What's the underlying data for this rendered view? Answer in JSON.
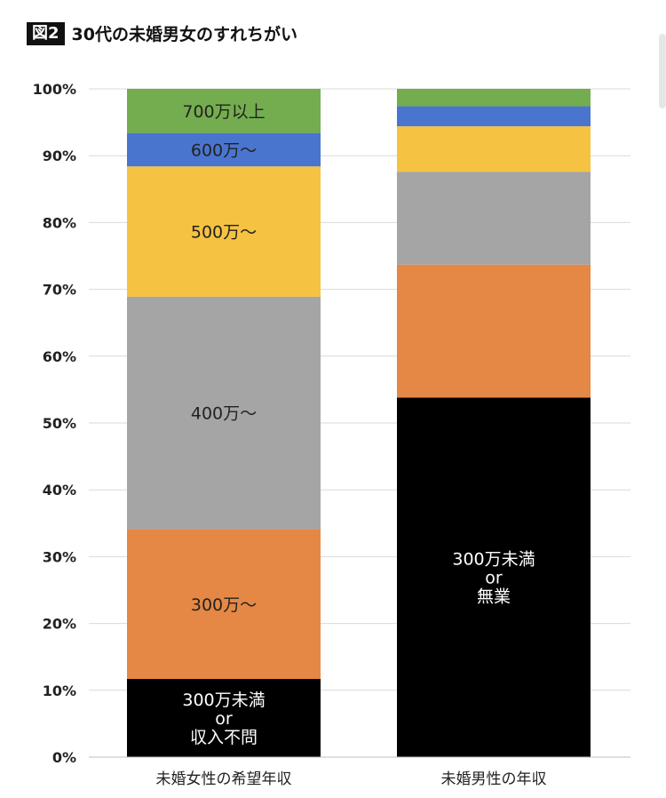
{
  "header": {
    "figure_label": "図2",
    "title": "30代の未婚男女のすれちがい"
  },
  "chart_data": {
    "type": "bar",
    "stacked": true,
    "title": "30代の未婚男女のすれちがい",
    "categories": [
      "未婚女性の希望年収",
      "未婚男性の年収"
    ],
    "ylim": [
      0,
      100
    ],
    "yticks": [
      "0%",
      "10%",
      "20%",
      "30%",
      "40%",
      "50%",
      "60%",
      "70%",
      "80%",
      "90%",
      "100%"
    ],
    "grid": true,
    "series": [
      {
        "color": "#000000",
        "text_color": "#ffffff",
        "values": [
          11.7,
          53.8
        ],
        "labels": [
          [
            "300万未満",
            "or",
            "収入不問"
          ],
          [
            "300万未満",
            "or",
            "無業"
          ]
        ]
      },
      {
        "color": "#e58845",
        "text_color": "#222222",
        "values": [
          22.4,
          19.9
        ],
        "labels": [
          [
            "300万～"
          ],
          []
        ]
      },
      {
        "color": "#a5a5a5",
        "text_color": "#222222",
        "values": [
          34.8,
          13.9
        ],
        "labels": [
          [
            "400万～"
          ],
          []
        ]
      },
      {
        "color": "#f5c242",
        "text_color": "#222222",
        "values": [
          19.5,
          6.8
        ],
        "labels": [
          [
            "500万～"
          ],
          []
        ]
      },
      {
        "color": "#4a75cf",
        "text_color": "#222222",
        "values": [
          5.0,
          3.0
        ],
        "labels": [
          [
            "600万～"
          ],
          []
        ]
      },
      {
        "color": "#74ad4f",
        "text_color": "#222222",
        "values": [
          6.6,
          2.6
        ],
        "labels": [
          [
            "700万以上"
          ],
          []
        ]
      }
    ]
  }
}
